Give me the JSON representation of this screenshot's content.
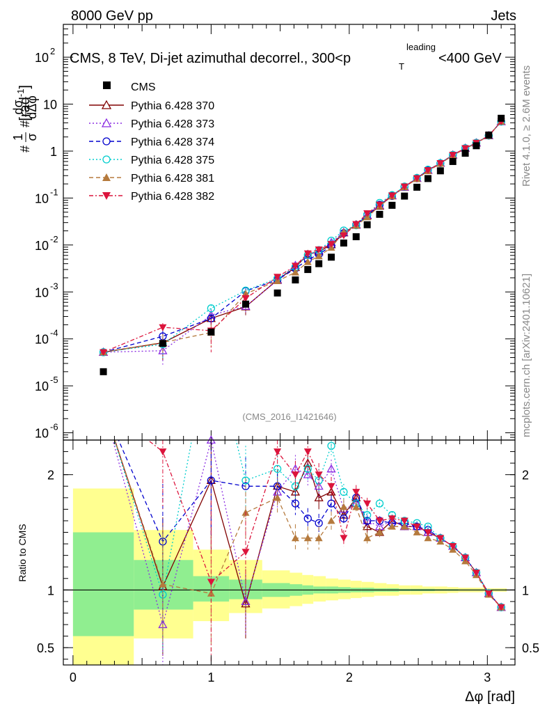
{
  "header": {
    "energy_label": "8000 GeV pp",
    "process_label": "Jets",
    "plot_title": "CMS, 8 TeV, Di-jet azimuthal decorrel., 300<p",
    "plot_title_sup": "leading",
    "plot_title_sub": "T",
    "plot_title_end": "<400 GeV",
    "analysis_id": "(CMS_2016_I1421646)",
    "rivet_label": "Rivet 4.1.0, ≥ 2.6M events",
    "site_label": "mcplots.cern.ch [arXiv:2401.10621]"
  },
  "legend": [
    {
      "label": "CMS"
    },
    {
      "label": "Pythia 6.428 370"
    },
    {
      "label": "Pythia 6.428 373"
    },
    {
      "label": "Pythia 6.428 374"
    },
    {
      "label": "Pythia 6.428 375"
    },
    {
      "label": "Pythia 6.428 381"
    },
    {
      "label": "Pythia 6.428 382"
    }
  ],
  "chart_data": {
    "type": "line",
    "title": "CMS, 8 TeV, Di-jet azimuthal decorrel., 300<pT leading<400 GeV",
    "xlabel": "Δφ [rad]",
    "ylabel": "1/σ dσ/dΔφ [rad⁻¹]",
    "ylabel_parts": {
      "hash1": "#",
      "one": "1",
      "sigma": "σ",
      "hash2": "#",
      "dsigma": "dσ",
      "dphi": "dΔφ",
      "unit": "[rad",
      "unit_sup": "-1",
      "unit_close": "]"
    },
    "ratio_ylabel": "Ratio to CMS",
    "xlim": [
      -0.07,
      3.2
    ],
    "ylim": [
      7e-07,
      500
    ],
    "ratio_ylim": [
      0.35,
      2.3
    ],
    "yscale": "log",
    "x_ticks": [
      {
        "v": 0,
        "label": "0"
      },
      {
        "v": 1,
        "label": "1"
      },
      {
        "v": 2,
        "label": "2"
      },
      {
        "v": 3,
        "label": "3"
      }
    ],
    "y_ticks": [
      {
        "v": 1e-06,
        "base": "10",
        "exp": "-6"
      },
      {
        "v": 1e-05,
        "base": "10",
        "exp": "-5"
      },
      {
        "v": 0.0001,
        "base": "10",
        "exp": "-4"
      },
      {
        "v": 0.001,
        "base": "10",
        "exp": "-3"
      },
      {
        "v": 0.01,
        "base": "10",
        "exp": "-2"
      },
      {
        "v": 0.1,
        "base": "10",
        "exp": "-1"
      },
      {
        "v": 1,
        "base": "1",
        "exp": ""
      },
      {
        "v": 10,
        "base": "10",
        "exp": ""
      },
      {
        "v": 100,
        "base": "10",
        "exp": "2"
      }
    ],
    "ratio_ticks": [
      {
        "v": 0.5,
        "label": "0.5"
      },
      {
        "v": 1,
        "label": "1"
      },
      {
        "v": 2,
        "label": "2"
      }
    ],
    "x": [
      0.22,
      0.65,
      1.0,
      1.25,
      1.48,
      1.61,
      1.7,
      1.78,
      1.87,
      1.96,
      2.05,
      2.13,
      2.22,
      2.31,
      2.4,
      2.49,
      2.57,
      2.66,
      2.75,
      2.84,
      2.92,
      3.01,
      3.1
    ],
    "band_edges": [
      0,
      0.44,
      0.87,
      1.13,
      1.37,
      1.57,
      1.66,
      1.74,
      1.83,
      1.92,
      2.01,
      2.09,
      2.18,
      2.27,
      2.36,
      2.44,
      2.53,
      2.62,
      2.71,
      2.79,
      2.88,
      2.97,
      3.05,
      3.14
    ],
    "band_stat": [
      [
        0.6,
        1.5
      ],
      [
        0.83,
        1.26
      ],
      [
        0.9,
        1.12
      ],
      [
        0.92,
        1.09
      ],
      [
        0.94,
        1.06
      ],
      [
        0.95,
        1.05
      ],
      [
        0.96,
        1.04
      ],
      [
        0.97,
        1.03
      ],
      [
        0.97,
        1.03
      ],
      [
        0.975,
        1.025
      ],
      [
        0.98,
        1.02
      ],
      [
        0.98,
        1.02
      ],
      [
        0.985,
        1.015
      ],
      [
        0.985,
        1.015
      ],
      [
        0.99,
        1.01
      ],
      [
        0.99,
        1.01
      ],
      [
        0.99,
        1.01
      ],
      [
        0.993,
        1.007
      ],
      [
        0.993,
        1.007
      ],
      [
        0.995,
        1.005
      ],
      [
        0.995,
        1.005
      ],
      [
        0.995,
        1.005
      ],
      [
        0.995,
        1.005
      ]
    ],
    "band_total": [
      [
        0.35,
        1.88
      ],
      [
        0.58,
        1.52
      ],
      [
        0.73,
        1.35
      ],
      [
        0.8,
        1.26
      ],
      [
        0.84,
        1.17
      ],
      [
        0.86,
        1.15
      ],
      [
        0.88,
        1.13
      ],
      [
        0.9,
        1.12
      ],
      [
        0.91,
        1.1
      ],
      [
        0.92,
        1.09
      ],
      [
        0.93,
        1.08
      ],
      [
        0.94,
        1.07
      ],
      [
        0.95,
        1.06
      ],
      [
        0.95,
        1.05
      ],
      [
        0.96,
        1.04
      ],
      [
        0.96,
        1.04
      ],
      [
        0.97,
        1.03
      ],
      [
        0.97,
        1.03
      ],
      [
        0.975,
        1.025
      ],
      [
        0.98,
        1.02
      ],
      [
        0.98,
        1.02
      ],
      [
        0.985,
        1.015
      ],
      [
        0.985,
        1.015
      ]
    ],
    "cms": [
      2e-05,
      8e-05,
      0.00014,
      0.00055,
      0.00095,
      0.0018,
      0.003,
      0.004,
      0.0055,
      0.011,
      0.015,
      0.027,
      0.045,
      0.07,
      0.11,
      0.17,
      0.26,
      0.38,
      0.6,
      0.9,
      1.3,
      2.2,
      5.0
    ],
    "series": [
      {
        "name": "Pythia 6.428 370",
        "color": "#800000",
        "dash": "",
        "marker": "triangle-up-open",
        "ratio": [
          2.6,
          1.03,
          1.95,
          0.88,
          1.9,
          1.85,
          2.1,
          1.8,
          1.85,
          1.65,
          1.8,
          1.55,
          1.5,
          1.6,
          1.55,
          1.55,
          1.5,
          1.45,
          1.38,
          1.28,
          1.15,
          0.97,
          0.85
        ],
        "err": [
          0,
          0.6,
          0.6,
          0.3,
          0.15,
          0.12,
          0.1,
          0.1,
          0.08,
          0.07,
          0.06,
          0.05,
          0.04,
          0.03,
          0.03,
          0.02,
          0.02,
          0.02,
          0.01,
          0.01,
          0.01,
          0.01,
          0.01
        ]
      },
      {
        "name": "Pythia 6.428 373",
        "color": "#8a2be2",
        "dash": "2,3",
        "marker": "triangle-up-open",
        "ratio": [
          2.6,
          0.7,
          2.3,
          0.9,
          1.85,
          2.05,
          2.0,
          1.9,
          2.05,
          1.7,
          1.75,
          1.6,
          1.55,
          1.6,
          1.55,
          1.55,
          1.5,
          1.45,
          1.38,
          1.28,
          1.15,
          0.97,
          0.85
        ],
        "err": [
          0,
          0.35,
          0.7,
          0.3,
          0.15,
          0.12,
          0.1,
          0.1,
          0.08,
          0.07,
          0.06,
          0.05,
          0.04,
          0.03,
          0.03,
          0.02,
          0.02,
          0.02,
          0.01,
          0.01,
          0.01,
          0.01,
          0.01
        ]
      },
      {
        "name": "Pythia 6.428 374",
        "color": "#0000cd",
        "dash": "6,4",
        "marker": "circle-open",
        "ratio": [
          2.6,
          1.42,
          1.95,
          1.9,
          1.9,
          1.75,
          1.62,
          1.58,
          1.75,
          1.62,
          1.8,
          1.6,
          1.6,
          1.58,
          1.58,
          1.55,
          1.52,
          1.45,
          1.38,
          1.28,
          1.15,
          0.97,
          0.85
        ],
        "err": [
          0,
          0.5,
          0.5,
          0.25,
          0.12,
          0.1,
          0.09,
          0.08,
          0.07,
          0.06,
          0.05,
          0.04,
          0.03,
          0.03,
          0.02,
          0.02,
          0.02,
          0.02,
          0.01,
          0.01,
          0.01,
          0.01,
          0.01
        ]
      },
      {
        "name": "Pythia 6.428 375",
        "color": "#00cdcd",
        "dash": "2,3",
        "marker": "circle-open",
        "ratio": [
          2.6,
          0.96,
          3.2,
          1.95,
          2.05,
          1.9,
          2.05,
          1.95,
          2.25,
          1.85,
          1.75,
          1.65,
          1.75,
          1.65,
          1.6,
          1.58,
          1.55,
          1.45,
          1.38,
          1.28,
          1.15,
          0.97,
          0.85
        ],
        "err": [
          0,
          0.5,
          0.6,
          0.3,
          0.15,
          0.12,
          0.1,
          0.1,
          0.08,
          0.07,
          0.06,
          0.05,
          0.04,
          0.03,
          0.03,
          0.02,
          0.02,
          0.02,
          0.01,
          0.01,
          0.01,
          0.01,
          0.01
        ]
      },
      {
        "name": "Pythia 6.428 381",
        "color": "#b57a3d",
        "dash": "6,4",
        "marker": "triangle-up-filled",
        "ratio": [
          2.6,
          1.05,
          0.97,
          1.67,
          1.8,
          1.45,
          1.45,
          1.45,
          1.6,
          1.72,
          1.72,
          1.45,
          1.5,
          1.55,
          1.55,
          1.5,
          1.45,
          1.42,
          1.35,
          1.25,
          1.13,
          0.96,
          0.85
        ],
        "err": [
          0,
          0.5,
          0.5,
          0.3,
          0.15,
          0.12,
          0.1,
          0.1,
          0.08,
          0.07,
          0.06,
          0.05,
          0.04,
          0.03,
          0.03,
          0.02,
          0.02,
          0.02,
          0.01,
          0.01,
          0.01,
          0.01,
          0.01
        ]
      },
      {
        "name": "Pythia 6.428 382",
        "color": "#dc143c",
        "dash": "6,3,2,3",
        "marker": "triangle-down-filled",
        "ratio": [
          2.6,
          2.2,
          1.07,
          1.33,
          2.2,
          2.0,
          2.2,
          2.0,
          1.9,
          1.45,
          1.85,
          1.75,
          1.6,
          1.62,
          1.6,
          1.55,
          1.5,
          1.45,
          1.38,
          1.28,
          1.15,
          0.97,
          0.85
        ],
        "err": [
          0,
          0.5,
          0.7,
          0.35,
          0.15,
          0.12,
          0.1,
          0.1,
          0.08,
          0.07,
          0.06,
          0.05,
          0.04,
          0.03,
          0.03,
          0.02,
          0.02,
          0.02,
          0.01,
          0.01,
          0.01,
          0.01,
          0.01
        ]
      }
    ]
  },
  "colors": {
    "cms": "#000000",
    "band_stat": "#90ee90",
    "band_total": "#ffff90",
    "watermark": "#888888"
  }
}
